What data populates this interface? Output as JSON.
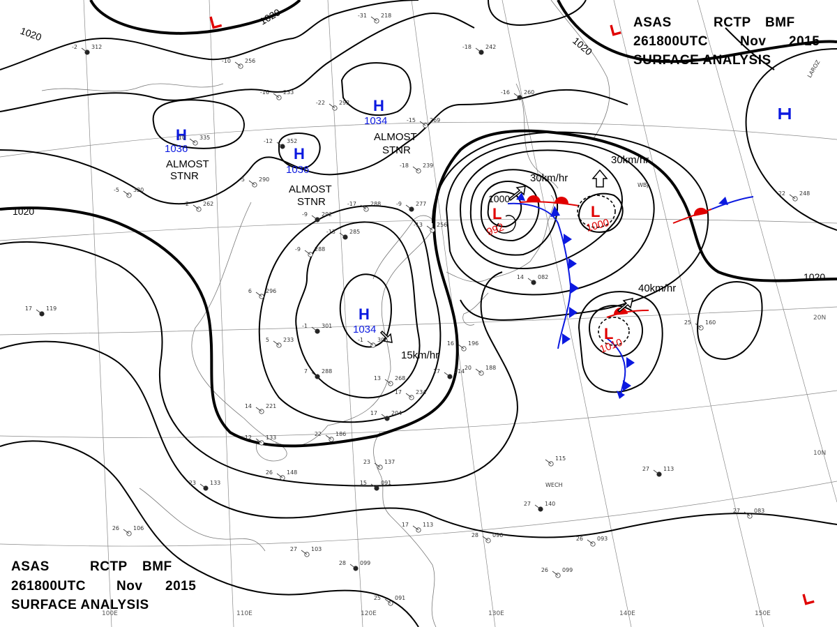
{
  "header_top": {
    "line1": [
      "ASAS",
      "RCTP",
      "BMF"
    ],
    "line2": [
      "261800UTC",
      "Nov",
      "2015"
    ],
    "line3": "SURFACE ANALYSIS"
  },
  "header_bottom": {
    "line1": [
      "ASAS",
      "RCTP",
      "BMF"
    ],
    "line2": [
      "261800UTC",
      "Nov",
      "2015"
    ],
    "line3": "SURFACE ANALYSIS"
  },
  "pressure_systems": [
    {
      "type": "H",
      "value": "1036",
      "note": [
        "ALMOST",
        "STNR"
      ]
    },
    {
      "type": "H",
      "value": "1036",
      "note": [
        "ALMOST",
        "STNR"
      ]
    },
    {
      "type": "H",
      "value": "1034",
      "note": [
        "ALMOST",
        "STNR"
      ]
    },
    {
      "type": "H",
      "value": "1034",
      "note": []
    },
    {
      "type": "H",
      "value": "",
      "note": []
    },
    {
      "type": "L",
      "value": "992",
      "note": []
    },
    {
      "type": "L",
      "value": "1000",
      "note": []
    },
    {
      "type": "L",
      "value": "1010",
      "note": []
    },
    {
      "type": "L",
      "value": "",
      "note": []
    },
    {
      "type": "L",
      "value": "",
      "note": []
    },
    {
      "type": "L",
      "value": "",
      "note": []
    }
  ],
  "motion_labels": [
    "30km/hr",
    "30km/hr",
    "40km/hr",
    "15km/hr"
  ],
  "isobar_labels": [
    "1020",
    "1020",
    "1020",
    "1020",
    "1000"
  ],
  "lon_labels": [
    "100E",
    "110E",
    "120E",
    "130E",
    "140E",
    "150E"
  ],
  "lat_labels": [
    "20N",
    "10N"
  ],
  "stations": [
    {
      "a": "-2",
      "b": "312"
    },
    {
      "a": "-10",
      "b": "256"
    },
    {
      "a": "-16",
      "b": "233"
    },
    {
      "a": "-18",
      "b": "242"
    },
    {
      "a": "-31",
      "b": "218"
    },
    {
      "a": "-10",
      "b": "335"
    },
    {
      "a": "-12",
      "b": "352"
    },
    {
      "a": "-22",
      "b": "292"
    },
    {
      "a": "-15",
      "b": "269"
    },
    {
      "a": "-16",
      "b": "260"
    },
    {
      "a": "-5",
      "b": "320"
    },
    {
      "a": "-2",
      "b": "262"
    },
    {
      "a": "-9",
      "b": "292"
    },
    {
      "a": "-17",
      "b": "288"
    },
    {
      "a": "-5",
      "b": "290"
    },
    {
      "a": "-13",
      "b": "285"
    },
    {
      "a": "-9",
      "b": "288"
    },
    {
      "a": "-18",
      "b": "239"
    },
    {
      "a": "-9",
      "b": "277"
    },
    {
      "a": "-13",
      "b": "256"
    },
    {
      "a": "6",
      "b": "296"
    },
    {
      "a": "-1",
      "b": "301"
    },
    {
      "a": "-1",
      "b": "306"
    },
    {
      "a": "5",
      "b": "233"
    },
    {
      "a": "7",
      "b": "288"
    },
    {
      "a": "13",
      "b": "268"
    },
    {
      "a": "17",
      "b": "234"
    },
    {
      "a": "17",
      "b": "204"
    },
    {
      "a": "14",
      "b": "221"
    },
    {
      "a": "22",
      "b": "186"
    },
    {
      "a": "17",
      "b": "119"
    },
    {
      "a": "12",
      "b": "133"
    },
    {
      "a": "26",
      "b": "148"
    },
    {
      "a": "23",
      "b": "133"
    },
    {
      "a": "26",
      "b": "106"
    },
    {
      "a": "27",
      "b": "103"
    },
    {
      "a": "28",
      "b": "099"
    },
    {
      "a": "25",
      "b": "091"
    },
    {
      "a": "23",
      "b": "137"
    },
    {
      "a": "15",
      "b": "091"
    },
    {
      "a": "17",
      "b": "113"
    },
    {
      "a": "28",
      "b": "096"
    },
    {
      "a": "27",
      "b": "140"
    },
    {
      "a": "26",
      "b": "093"
    },
    {
      "a": "26",
      "b": "099"
    },
    {
      "a": "27",
      "b": "113"
    },
    {
      "a": "27",
      "b": "083"
    },
    {
      "a": "25",
      "b": "160"
    },
    {
      "a": "14",
      "b": "082"
    },
    {
      "a": "16",
      "b": "196"
    },
    {
      "a": "20",
      "b": "188"
    },
    {
      "a": "17",
      "b": "214"
    },
    {
      "a": "22",
      "b": "248"
    },
    {
      "a": "",
      "b": "115"
    }
  ],
  "station_ids": [
    "WECH",
    "WBJ",
    "LAROZ"
  ],
  "colors": {
    "high": "#0b19e0",
    "low": "#e00000",
    "warm_front": "#e00000",
    "cold_front": "#0b19e0",
    "isobar": "#000000"
  }
}
